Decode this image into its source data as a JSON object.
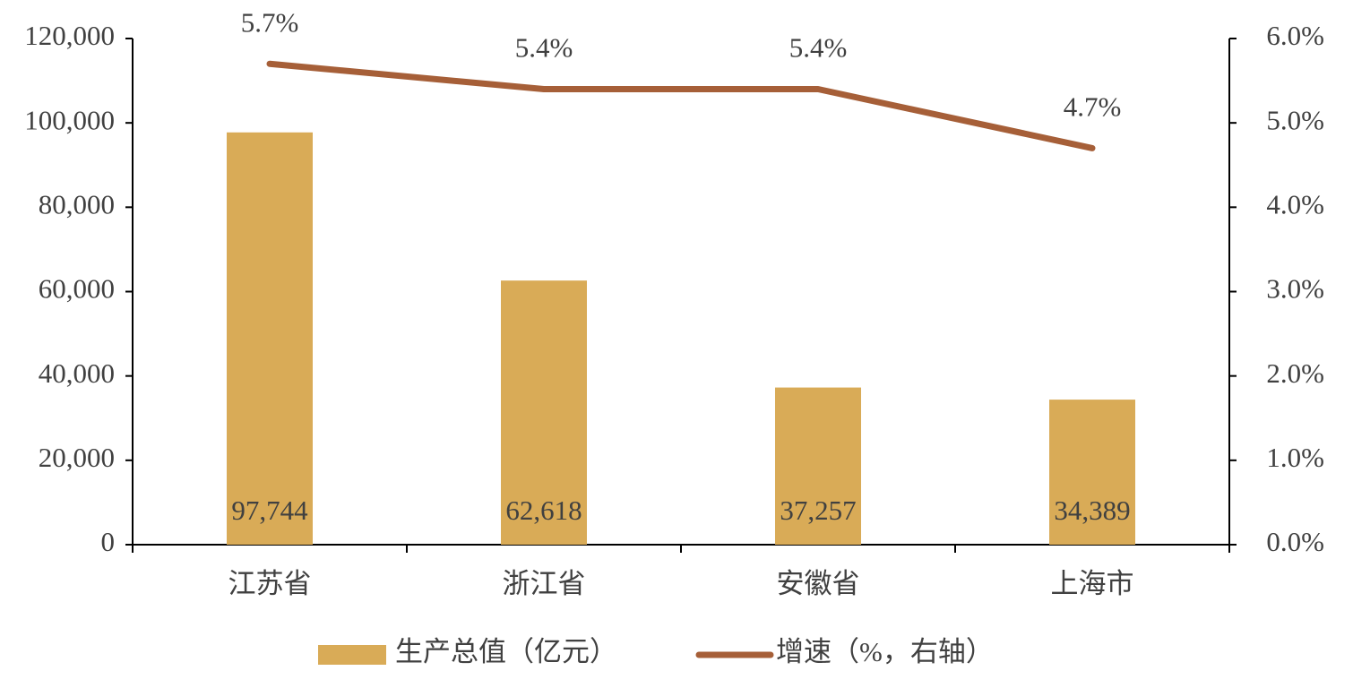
{
  "chart_data": {
    "type": "bar",
    "categories": [
      "江苏省",
      "浙江省",
      "安徽省",
      "上海市"
    ],
    "series": [
      {
        "name": "生产总值（亿元）",
        "color": "#d9ab57",
        "values": [
          97744,
          62618,
          37257,
          34389
        ],
        "value_labels": [
          "97,744",
          "62,618",
          "37,257",
          "34,389"
        ]
      },
      {
        "name": "增速（%，右轴）",
        "type": "line",
        "axis": "y2",
        "color": "#a65f38",
        "values": [
          5.7,
          5.4,
          5.4,
          4.7
        ],
        "value_labels": [
          "5.7%",
          "5.4%",
          "5.4%",
          "4.7%"
        ]
      }
    ],
    "ylim": [
      0,
      120000
    ],
    "yticks": [
      0,
      {
        "value": 20000,
        "label": "20,000"
      },
      {
        "value": 40000,
        "label": "40,000"
      },
      {
        "value": 60000,
        "label": "60,000"
      },
      {
        "value": 80000,
        "label": "80,000"
      },
      {
        "value": 100000,
        "label": "100,000"
      },
      {
        "value": 120000,
        "label": "120,000"
      }
    ],
    "y2lim": [
      0,
      6
    ],
    "y2ticks": [
      {
        "value": 0,
        "label": "0.0%"
      },
      {
        "value": 1,
        "label": "1.0%"
      },
      {
        "value": 2,
        "label": "2.0%"
      },
      {
        "value": 3,
        "label": "3.0%"
      },
      {
        "value": 4,
        "label": "4.0%"
      },
      {
        "value": 5,
        "label": "5.0%"
      },
      {
        "value": 6,
        "label": "6.0%"
      }
    ],
    "grid": false,
    "legend": "bottom"
  }
}
